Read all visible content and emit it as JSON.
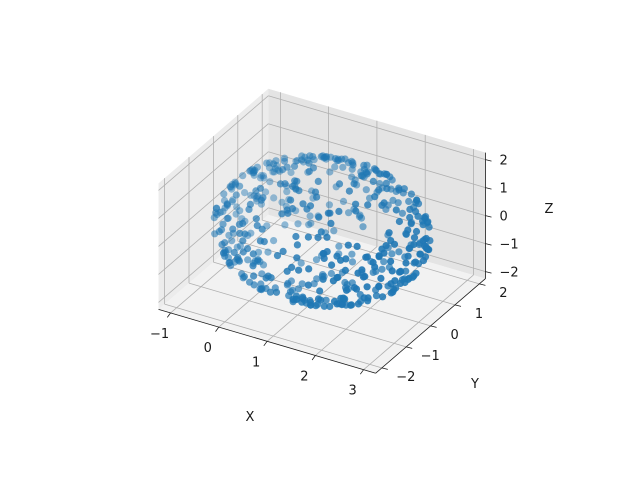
{
  "chart_data": {
    "type": "scatter",
    "projection": "3d",
    "title": "",
    "xlabel": "X",
    "ylabel": "Y",
    "zlabel": "Z",
    "xlim": [
      -1.25,
      3.25
    ],
    "ylim": [
      -2.25,
      2.25
    ],
    "zlim": [
      -2.25,
      2.25
    ],
    "xticks": [
      -1,
      0,
      1,
      2,
      3
    ],
    "yticks": [
      -2,
      -1,
      0,
      1,
      2
    ],
    "zticks": [
      -2,
      -1,
      0,
      1,
      2
    ],
    "grid": true,
    "marker_color": "#1f77b4",
    "points_shape": "sphere surface",
    "points_center": [
      1,
      0,
      0
    ],
    "points_radius": 2,
    "point_count": 500
  }
}
